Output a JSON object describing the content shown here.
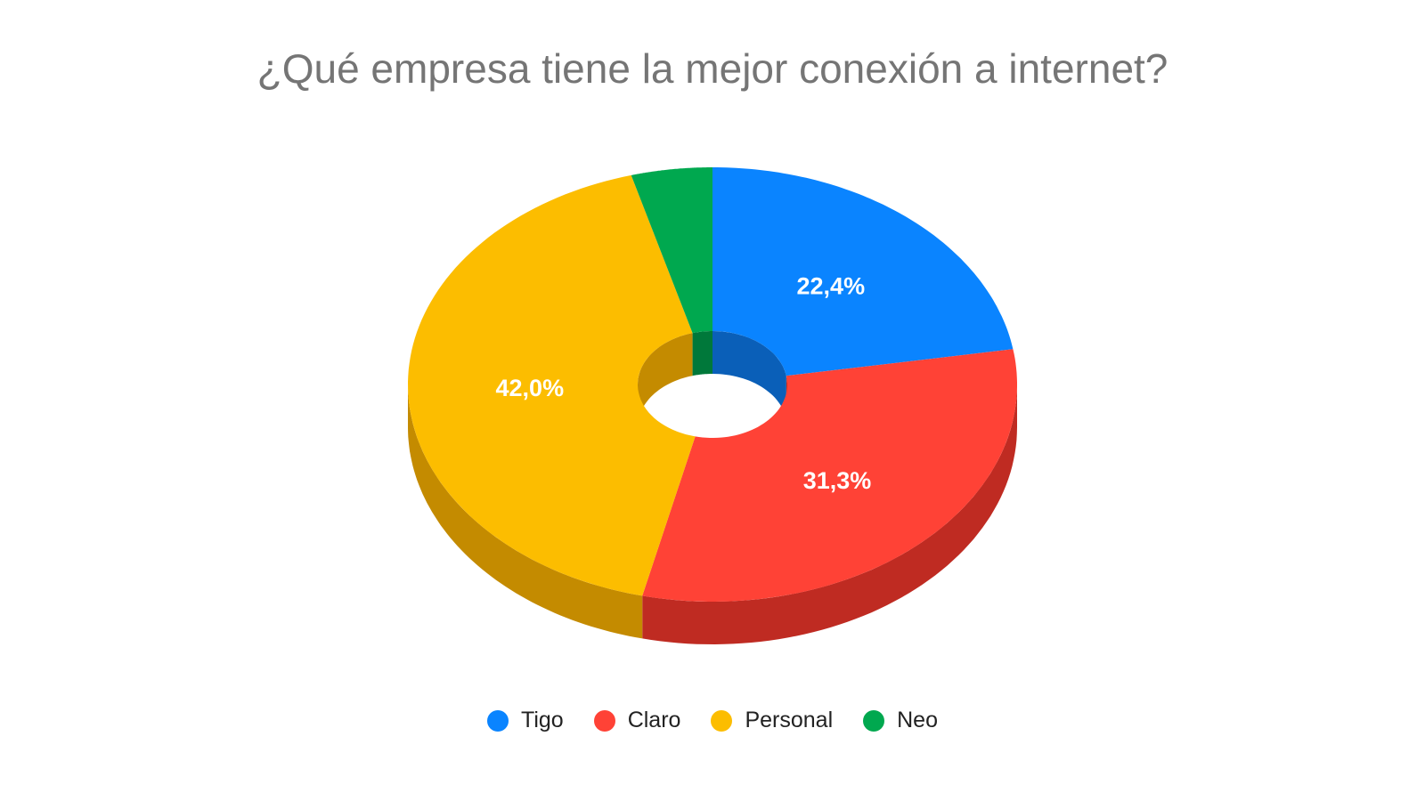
{
  "chart_data": {
    "type": "pie",
    "title": "¿Qué empresa tiene la mejor conexión a internet?",
    "style": "3d-donut",
    "categories": [
      "Tigo",
      "Claro",
      "Personal",
      "Neo"
    ],
    "values": [
      22.4,
      31.3,
      42.0,
      4.3
    ],
    "data_labels": [
      "22,4%",
      "31,3%",
      "42,0%",
      ""
    ],
    "colors": [
      "#0a84ff",
      "#ff4236",
      "#fcbd00",
      "#00a84f"
    ],
    "side_colors": [
      "#0a5fb8",
      "#bf2b22",
      "#c48b00",
      "#00783a"
    ],
    "legend_position": "bottom"
  }
}
